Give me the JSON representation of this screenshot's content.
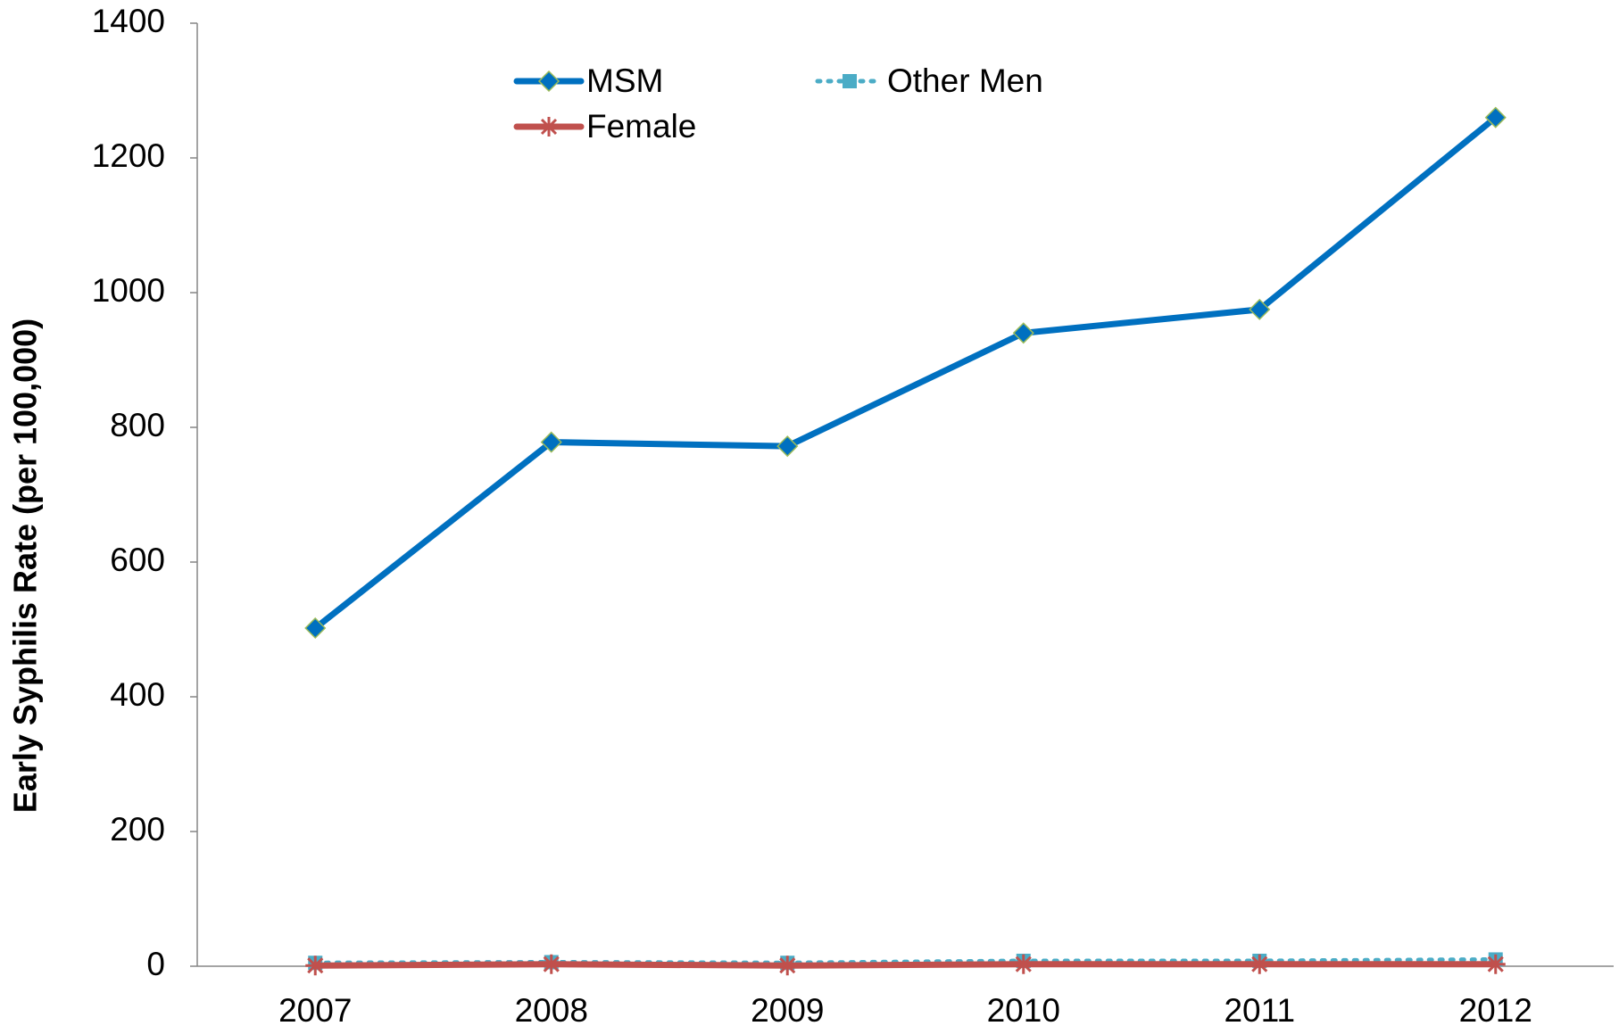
{
  "chart_data": {
    "type": "line",
    "y_label": "Early Syphilis Rate (per 100,000)",
    "categories": [
      "2007",
      "2008",
      "2009",
      "2010",
      "2011",
      "2012"
    ],
    "series": [
      {
        "name": "MSM",
        "color": "#0070c0",
        "marker": "diamond",
        "dash": "solid",
        "values": [
          502,
          778,
          772,
          940,
          975,
          1260
        ]
      },
      {
        "name": "Other Men",
        "color": "#4bacc6",
        "marker": "square",
        "dash": "dotted",
        "values": [
          5,
          6,
          5,
          8,
          8,
          10
        ]
      },
      {
        "name": "Female",
        "color": "#c0504d",
        "marker": "asterisk",
        "dash": "solid",
        "values": [
          1,
          3,
          1,
          3,
          3,
          3
        ]
      }
    ],
    "ylim": [
      0,
      1400
    ],
    "yticks": [
      0,
      200,
      400,
      600,
      800,
      1000,
      1200,
      1400
    ],
    "grid": false
  }
}
